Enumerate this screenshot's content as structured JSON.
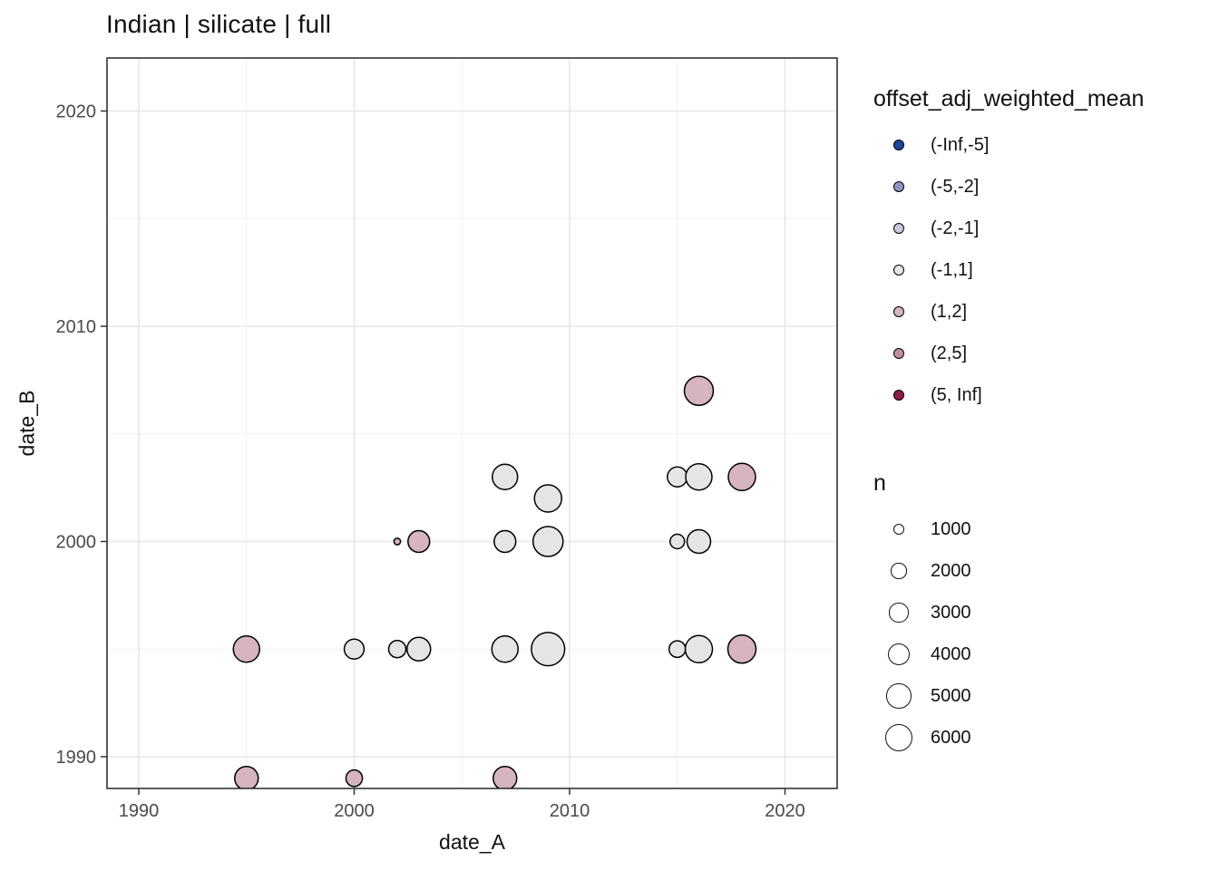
{
  "chart_data": {
    "type": "scatter",
    "title": "Indian | silicate | full",
    "xlabel": "date_A",
    "ylabel": "date_B",
    "xlim": [
      1988.5,
      2022.5
    ],
    "ylim": [
      1988.5,
      2022.5
    ],
    "x_ticks": [
      1990,
      2000,
      2010,
      2020
    ],
    "y_ticks": [
      1990,
      2000,
      2010,
      2020
    ],
    "minor_grid_years": [
      1995,
      2005,
      2015
    ],
    "grid": "major and minor, light gray on white panel with dark border",
    "legend_position": "right",
    "panel_border_color": "#262626",
    "major_grid_color": "#e7e7e7",
    "minor_grid_color": "#f1f1f1",
    "point_stroke_color": "#000000",
    "color_legend": {
      "title": "offset_adj_weighted_mean",
      "bins": [
        {
          "label": "(-Inf,-5]",
          "color": "#17479E"
        },
        {
          "label": "(-5,-2]",
          "color": "#9093C4"
        },
        {
          "label": "(-2,-1]",
          "color": "#C7C7DB"
        },
        {
          "label": "(-1,1]",
          "color": "#E5E5E5"
        },
        {
          "label": "(1,2]",
          "color": "#D6B4C0"
        },
        {
          "label": "(2,5]",
          "color": "#C48E9E"
        },
        {
          "label": "(5, Inf]",
          "color": "#8E1D4C"
        }
      ]
    },
    "size_legend": {
      "title": "n",
      "values": [
        1000,
        2000,
        3000,
        4000,
        5000,
        6000
      ]
    },
    "points": [
      {
        "x": 1995,
        "y": 1989,
        "n": 4500,
        "bin": "(1,2]"
      },
      {
        "x": 1995,
        "y": 1995,
        "n": 5600,
        "bin": "(1,2]"
      },
      {
        "x": 2000,
        "y": 1989,
        "n": 2200,
        "bin": "(1,2]"
      },
      {
        "x": 2000,
        "y": 1995,
        "n": 3200,
        "bin": "(-1,1]"
      },
      {
        "x": 2002,
        "y": 1995,
        "n": 2400,
        "bin": "(-1,1]"
      },
      {
        "x": 2002,
        "y": 2000,
        "n": 350,
        "bin": "(1,2]"
      },
      {
        "x": 2003,
        "y": 1995,
        "n": 4500,
        "bin": "(-1,1]"
      },
      {
        "x": 2003,
        "y": 2000,
        "n": 3800,
        "bin": "(1,2]"
      },
      {
        "x": 2007,
        "y": 1989,
        "n": 4500,
        "bin": "(1,2]"
      },
      {
        "x": 2007,
        "y": 1995,
        "n": 5600,
        "bin": "(-1,1]"
      },
      {
        "x": 2007,
        "y": 2000,
        "n": 3800,
        "bin": "(-1,1]"
      },
      {
        "x": 2007,
        "y": 2003,
        "n": 5200,
        "bin": "(-1,1]"
      },
      {
        "x": 2009,
        "y": 1995,
        "n": 9000,
        "bin": "(-1,1]"
      },
      {
        "x": 2009,
        "y": 2000,
        "n": 7300,
        "bin": "(-1,1]"
      },
      {
        "x": 2009,
        "y": 2002,
        "n": 6000,
        "bin": "(-1,1]"
      },
      {
        "x": 2015,
        "y": 1995,
        "n": 2200,
        "bin": "(-1,1]"
      },
      {
        "x": 2015,
        "y": 2000,
        "n": 1700,
        "bin": "(-1,1]"
      },
      {
        "x": 2015,
        "y": 2003,
        "n": 3200,
        "bin": "(-1,1]"
      },
      {
        "x": 2016,
        "y": 1995,
        "n": 6000,
        "bin": "(-1,1]"
      },
      {
        "x": 2016,
        "y": 2000,
        "n": 4500,
        "bin": "(-1,1]"
      },
      {
        "x": 2016,
        "y": 2003,
        "n": 5600,
        "bin": "(-1,1]"
      },
      {
        "x": 2016,
        "y": 2007,
        "n": 6800,
        "bin": "(1,2]"
      },
      {
        "x": 2018,
        "y": 1995,
        "n": 6400,
        "bin": "(1,2]"
      },
      {
        "x": 2018,
        "y": 2003,
        "n": 6000,
        "bin": "(1,2]"
      }
    ]
  }
}
